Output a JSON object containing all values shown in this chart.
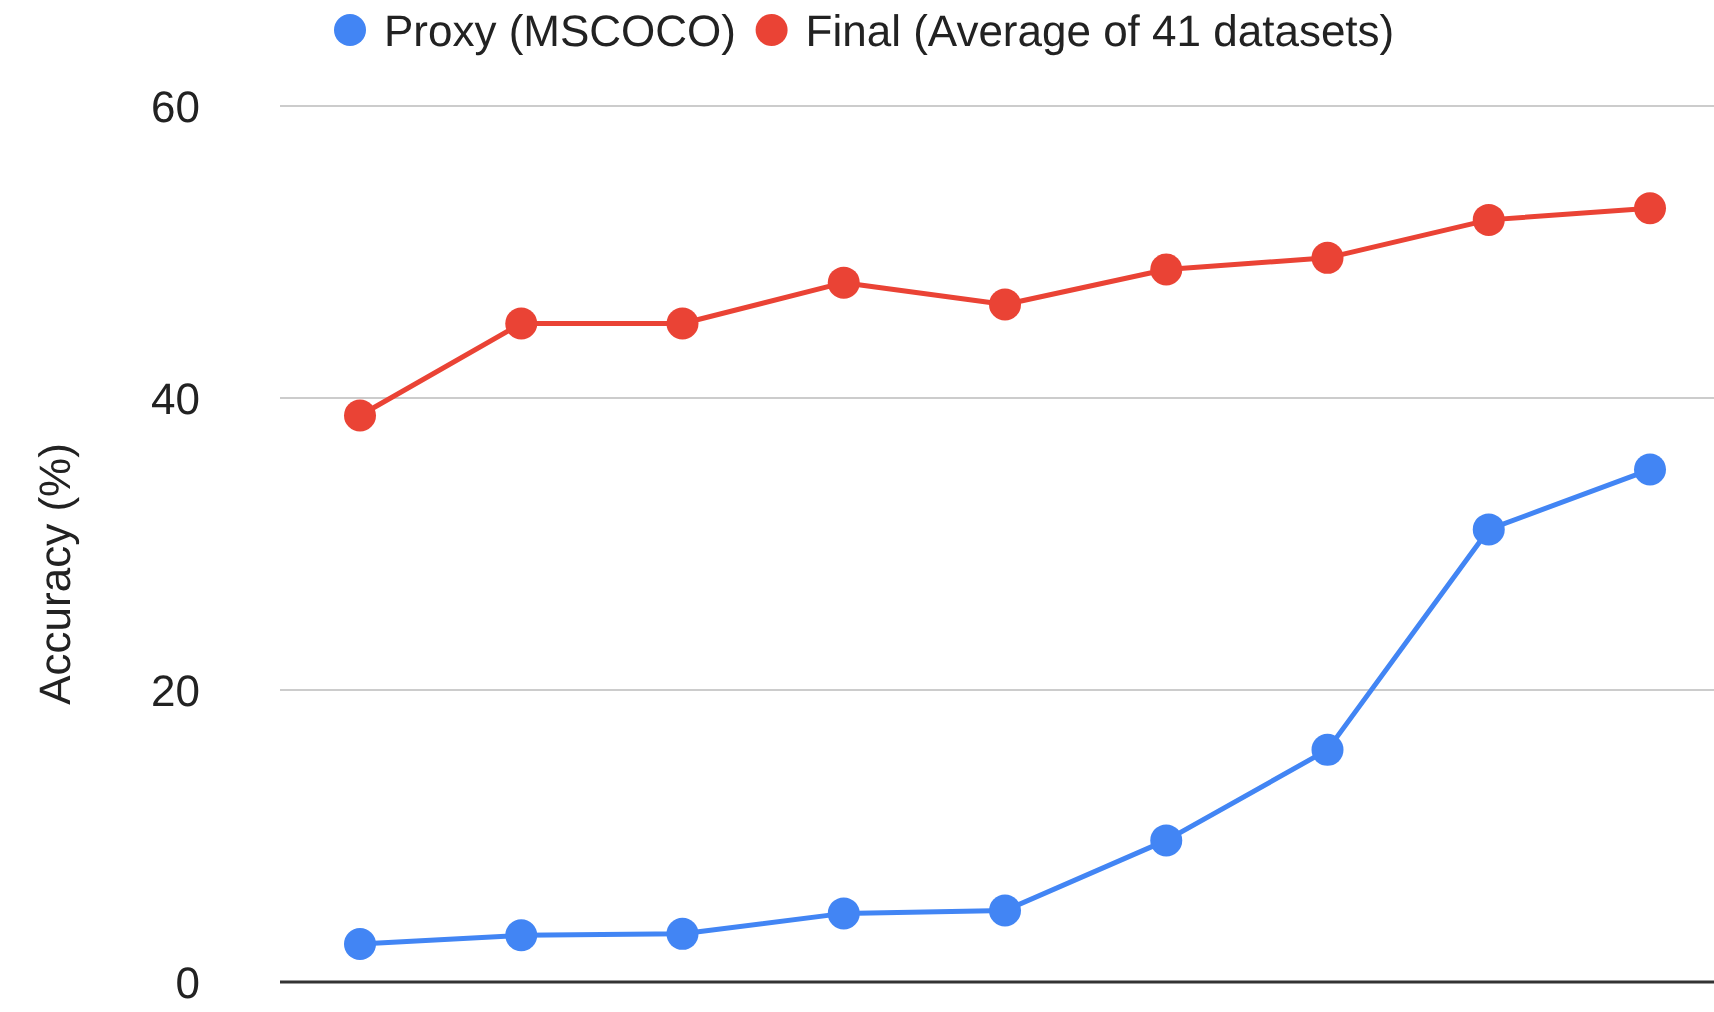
{
  "chart_data": {
    "type": "line",
    "ylabel": "Accuracy (%)",
    "categories": [
      null,
      null,
      null,
      null,
      null,
      null,
      null,
      null,
      null
    ],
    "series": [
      {
        "name": "Proxy (MSCOCO)",
        "color": "#4285f4",
        "values": [
          2.6,
          3.2,
          3.3,
          4.7,
          4.9,
          9.7,
          15.9,
          31.0,
          35.1
        ]
      },
      {
        "name": "Final (Average of 41 datasets)",
        "color": "#ea4335",
        "values": [
          38.8,
          45.1,
          45.1,
          47.9,
          46.4,
          48.8,
          49.6,
          52.2,
          53.0
        ]
      }
    ],
    "ylim": [
      0,
      60
    ],
    "yticks": [
      0,
      20,
      40,
      60
    ],
    "grid": true,
    "legend": "top",
    "marker": "circle",
    "line_style": "solid"
  }
}
